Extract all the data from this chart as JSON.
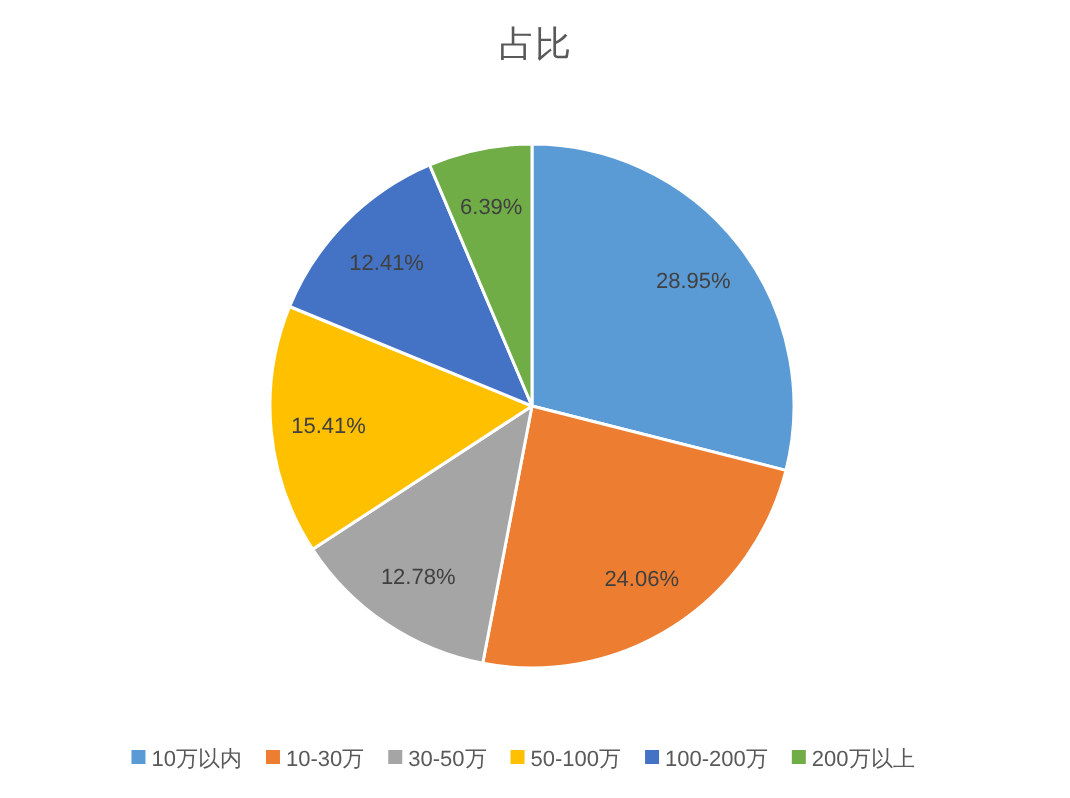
{
  "chart_data": {
    "type": "pie",
    "title": "占比",
    "categories": [
      "10万以内",
      "10-30万",
      "30-50万",
      "50-100万",
      "100-200万",
      "200万以上"
    ],
    "values": [
      28.95,
      24.06,
      12.78,
      15.41,
      12.41,
      6.39
    ],
    "colors": [
      "#5b9bd5",
      "#ed7d31",
      "#a5a5a5",
      "#ffc000",
      "#4472c4",
      "#70ad47"
    ],
    "value_labels": [
      "28.95%",
      "24.06%",
      "12.78%",
      "15.41%",
      "12.41%",
      "6.39%"
    ],
    "legend": "bottom"
  }
}
